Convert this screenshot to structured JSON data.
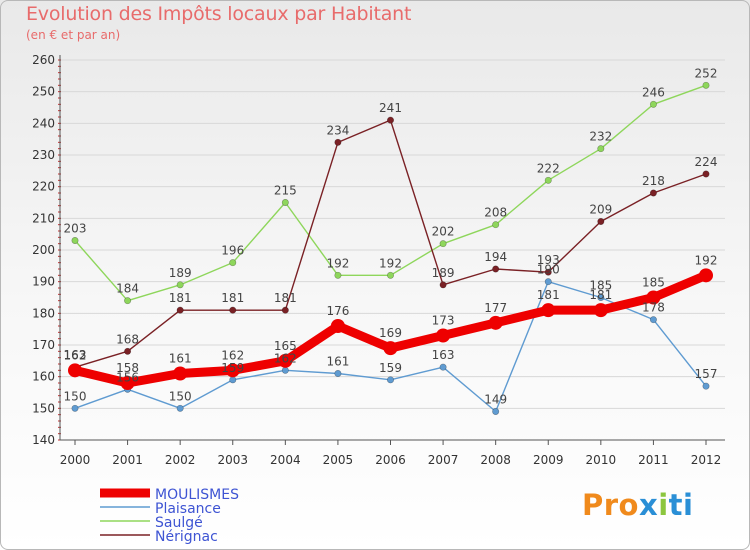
{
  "header": {
    "title": "Evolution des Impôts locaux par Habitant",
    "subtitle": "(en € et par an)"
  },
  "logo": {
    "part1": "Pro",
    "part2": "x",
    "part3": "i",
    "part4": "ti"
  },
  "colors": {
    "moulismes": "#ee0000",
    "plaisance": "#5f9bd1",
    "saulge": "#8ed65b",
    "nerignac": "#7a2125",
    "axis": "#555555",
    "grid": "#d8d8d8",
    "title": "#e86b6b",
    "legend_text": "#3e54d3",
    "value_text": "#444444"
  },
  "chart_data": {
    "type": "line",
    "title": "Evolution des Impôts locaux par Habitant",
    "subtitle": "(en € et par an)",
    "xlabel": "",
    "ylabel": "",
    "ylim": [
      140,
      260
    ],
    "yticks": [
      "140",
      "150",
      "160",
      "170",
      "180",
      "190",
      "200",
      "210",
      "220",
      "230",
      "240",
      "250",
      "260"
    ],
    "x": [
      "2000",
      "2001",
      "2002",
      "2003",
      "2004",
      "2005",
      "2006",
      "2007",
      "2008",
      "2009",
      "2010",
      "2011",
      "2012"
    ],
    "grid": true,
    "legend_position": "bottom-left",
    "series": [
      {
        "name": "MOULISMES",
        "color_key": "moulismes",
        "values": [
          162,
          158,
          161,
          162,
          165,
          176,
          169,
          173,
          177,
          181,
          181,
          185,
          192
        ]
      },
      {
        "name": "Plaisance",
        "color_key": "plaisance",
        "values": [
          150,
          156,
          150,
          159,
          162,
          161,
          159,
          163,
          149,
          190,
          185,
          178,
          157
        ]
      },
      {
        "name": "Saulgé",
        "color_key": "saulge",
        "values": [
          203,
          184,
          189,
          196,
          215,
          192,
          192,
          202,
          208,
          222,
          232,
          246,
          252
        ]
      },
      {
        "name": "Nérignac",
        "color_key": "nerignac",
        "values": [
          163,
          168,
          181,
          181,
          181,
          234,
          241,
          189,
          194,
          193,
          209,
          218,
          224
        ]
      }
    ],
    "label_order": [
      "Plaisance",
      "Saulgé",
      "Nérignac",
      "MOULISMES"
    ]
  }
}
